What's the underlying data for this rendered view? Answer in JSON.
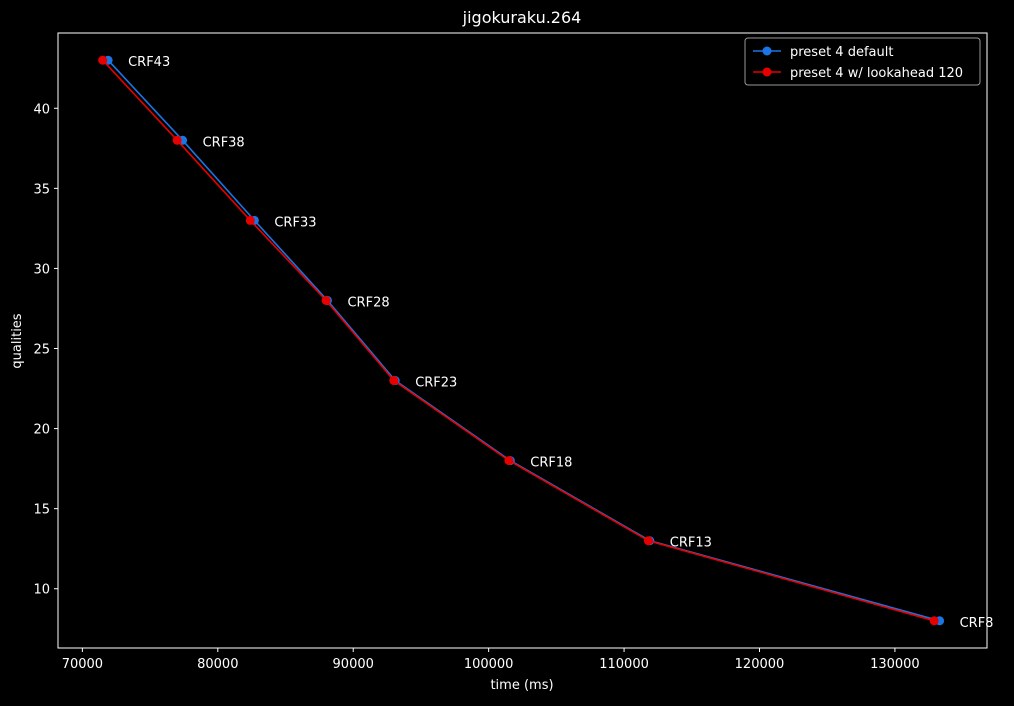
{
  "chart_data": {
    "type": "line",
    "title": "jigokuraku.264",
    "xlabel": "time (ms)",
    "ylabel": "qualities",
    "xlim": [
      68200,
      136800
    ],
    "ylim": [
      6.3,
      44.7
    ],
    "xticks": [
      70000,
      80000,
      90000,
      100000,
      110000,
      120000,
      130000
    ],
    "yticks": [
      10,
      15,
      20,
      25,
      30,
      35,
      40
    ],
    "grid": false,
    "legend_position": "top-right",
    "point_labels": [
      "CRF43",
      "CRF38",
      "CRF33",
      "CRF28",
      "CRF23",
      "CRF18",
      "CRF13",
      "CRF8"
    ],
    "series": [
      {
        "name": "preset 4 default",
        "color": "#1a75e6",
        "x": [
          71900,
          77400,
          82700,
          88100,
          93100,
          101600,
          111900,
          133300
        ],
        "y": [
          43,
          38,
          33,
          28,
          23,
          18,
          13,
          8
        ]
      },
      {
        "name": "preset 4 w/ lookahead 120",
        "color": "#e60000",
        "x": [
          71500,
          77000,
          82400,
          88000,
          93000,
          101500,
          111800,
          132900
        ],
        "y": [
          43,
          38,
          33,
          28,
          23,
          18,
          13,
          8
        ]
      }
    ]
  }
}
